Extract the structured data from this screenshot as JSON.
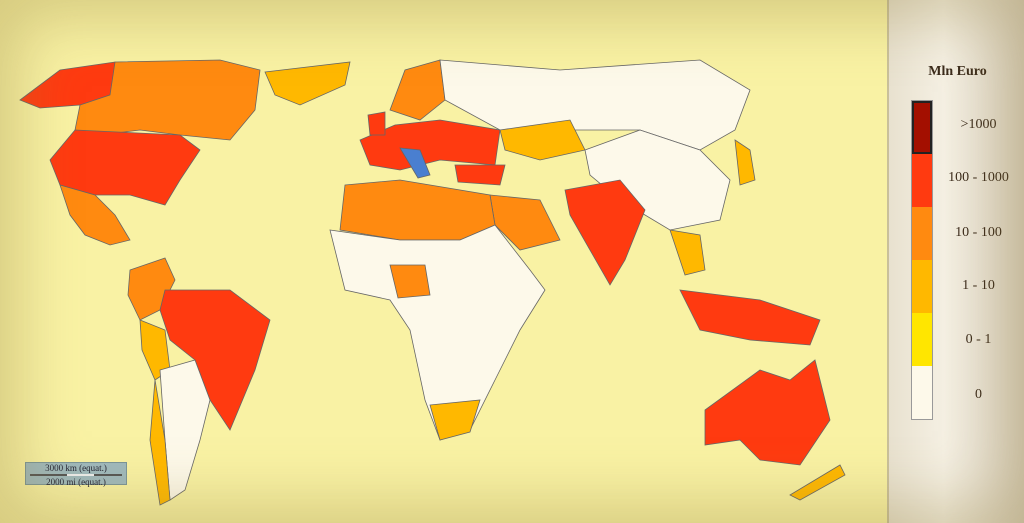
{
  "legend": {
    "title": "Mln Euro",
    "classes": [
      {
        "label": ">1000",
        "color": "#a30f00"
      },
      {
        "label": "100 - 1000",
        "color": "#ff3a10"
      },
      {
        "label": "10 - 100",
        "color": "#ff8a10"
      },
      {
        "label": "1 - 10",
        "color": "#ffb800"
      },
      {
        "label": "0 - 1",
        "color": "#ffe600"
      },
      {
        "label": "0",
        "color": "#fdf9ea"
      }
    ]
  },
  "scale_bar": {
    "km": "3000 km (equat.)",
    "mi": "2000 mi (equat.)"
  },
  "colors": {
    "background": "#f9f2a4",
    "highlight_country": "#4a7fd0",
    "border": "#555555"
  }
}
